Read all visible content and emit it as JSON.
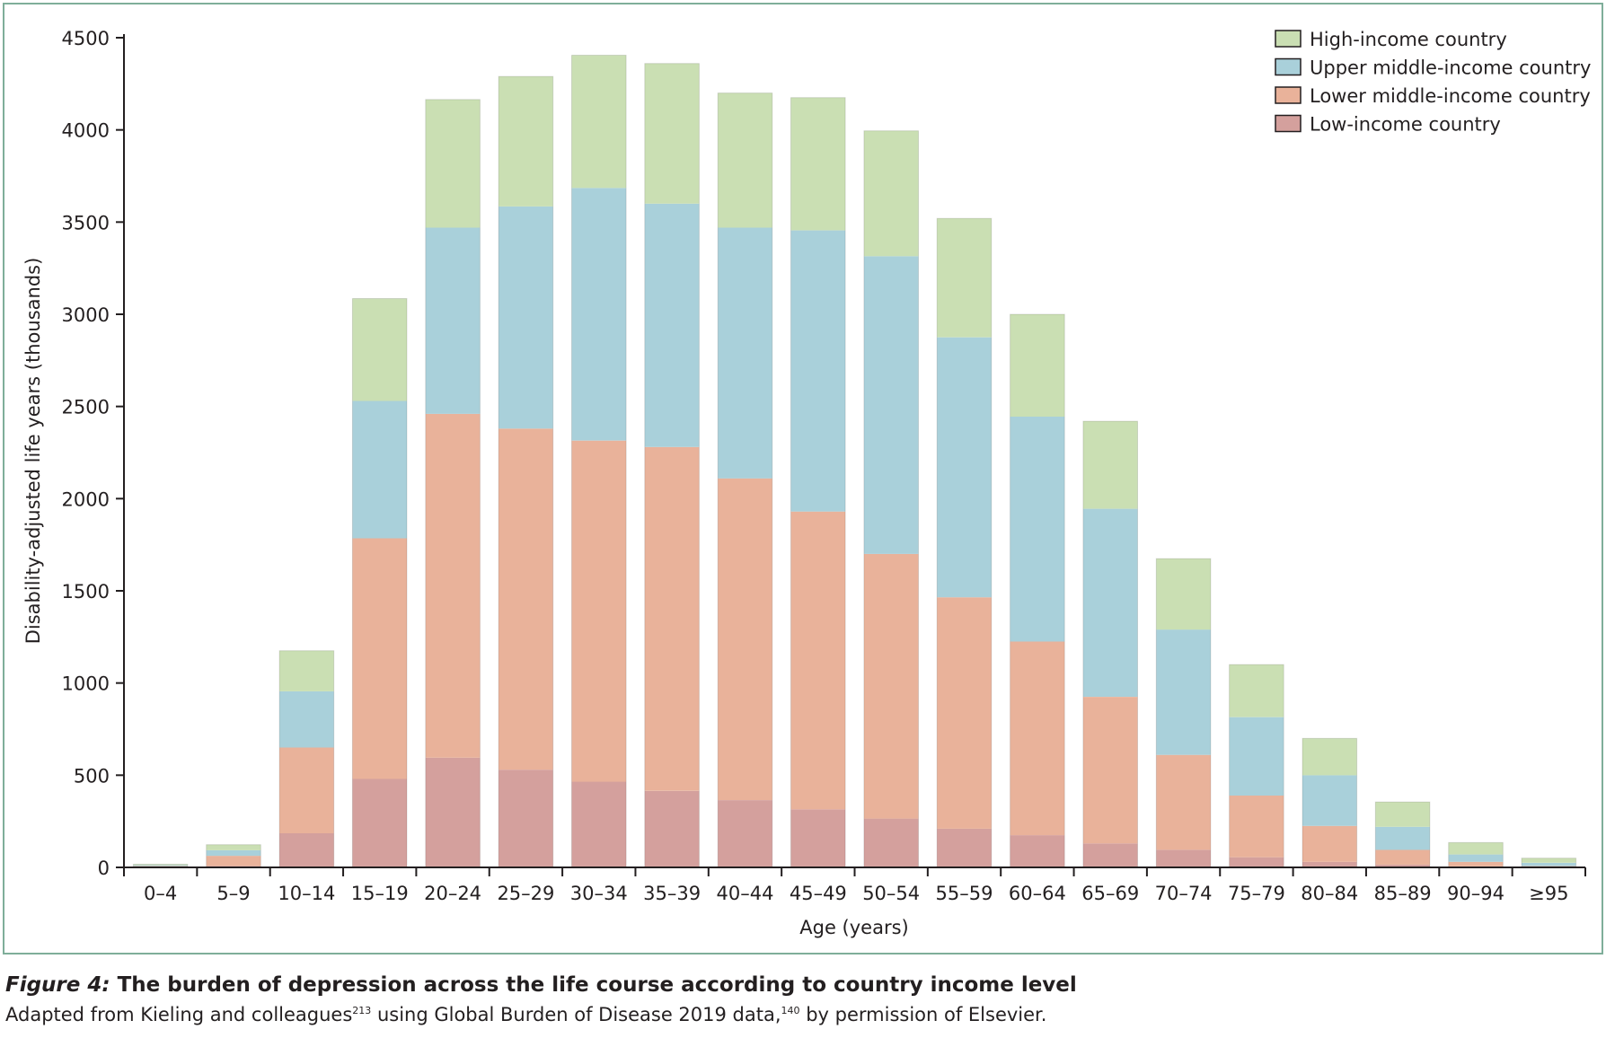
{
  "chart_data": {
    "type": "bar",
    "stacked": true,
    "categories": [
      "0–4",
      "5–9",
      "10–14",
      "15–19",
      "20–24",
      "25–29",
      "30–34",
      "35–39",
      "40–44",
      "45–49",
      "50–54",
      "55–59",
      "60–64",
      "65–69",
      "70–74",
      "75–79",
      "80–84",
      "85–89",
      "90–94",
      "≥95"
    ],
    "series": [
      {
        "name": "Low-income country",
        "color": "#d4a09d",
        "values": [
          2,
          8,
          185,
          480,
          595,
          530,
          465,
          415,
          365,
          315,
          265,
          210,
          175,
          130,
          95,
          55,
          30,
          15,
          5,
          2
        ]
      },
      {
        "name": "Lower middle-income country",
        "color": "#e9b29a",
        "values": [
          5,
          55,
          465,
          1305,
          1865,
          1850,
          1850,
          1865,
          1745,
          1615,
          1435,
          1255,
          1050,
          795,
          515,
          335,
          195,
          80,
          25,
          5
        ]
      },
      {
        "name": "Upper middle-income country",
        "color": "#a9d0da",
        "values": [
          5,
          30,
          305,
          745,
          1010,
          1205,
          1370,
          1320,
          1360,
          1525,
          1615,
          1410,
          1220,
          1020,
          680,
          425,
          275,
          125,
          40,
          18
        ]
      },
      {
        "name": "High-income country",
        "color": "#cadfb3",
        "values": [
          5,
          30,
          220,
          555,
          695,
          705,
          720,
          760,
          730,
          720,
          680,
          645,
          555,
          475,
          385,
          285,
          200,
          135,
          65,
          25
        ]
      }
    ],
    "xlabel": "Age (years)",
    "ylabel": "Disability-adjusted life years (thousands)",
    "ylim": [
      0,
      4500
    ],
    "yticks": [
      "0",
      "500",
      "1000",
      "1500",
      "2000",
      "2500",
      "3000",
      "3500",
      "4000",
      "4500"
    ],
    "grid": false,
    "legend_position": "top-right",
    "legend_order": [
      "High-income country",
      "Upper middle-income country",
      "Lower middle-income country",
      "Low-income country"
    ]
  },
  "caption": {
    "label": "Figure 4:",
    "title": " The burden of depression across the life course according to country income level",
    "text_before": "Adapted from Kieling and colleagues",
    "ref1": "213",
    "text_middle": " using Global Burden of Disease 2019 data,",
    "ref2": "140",
    "text_after": " by permission of Elsevier."
  }
}
